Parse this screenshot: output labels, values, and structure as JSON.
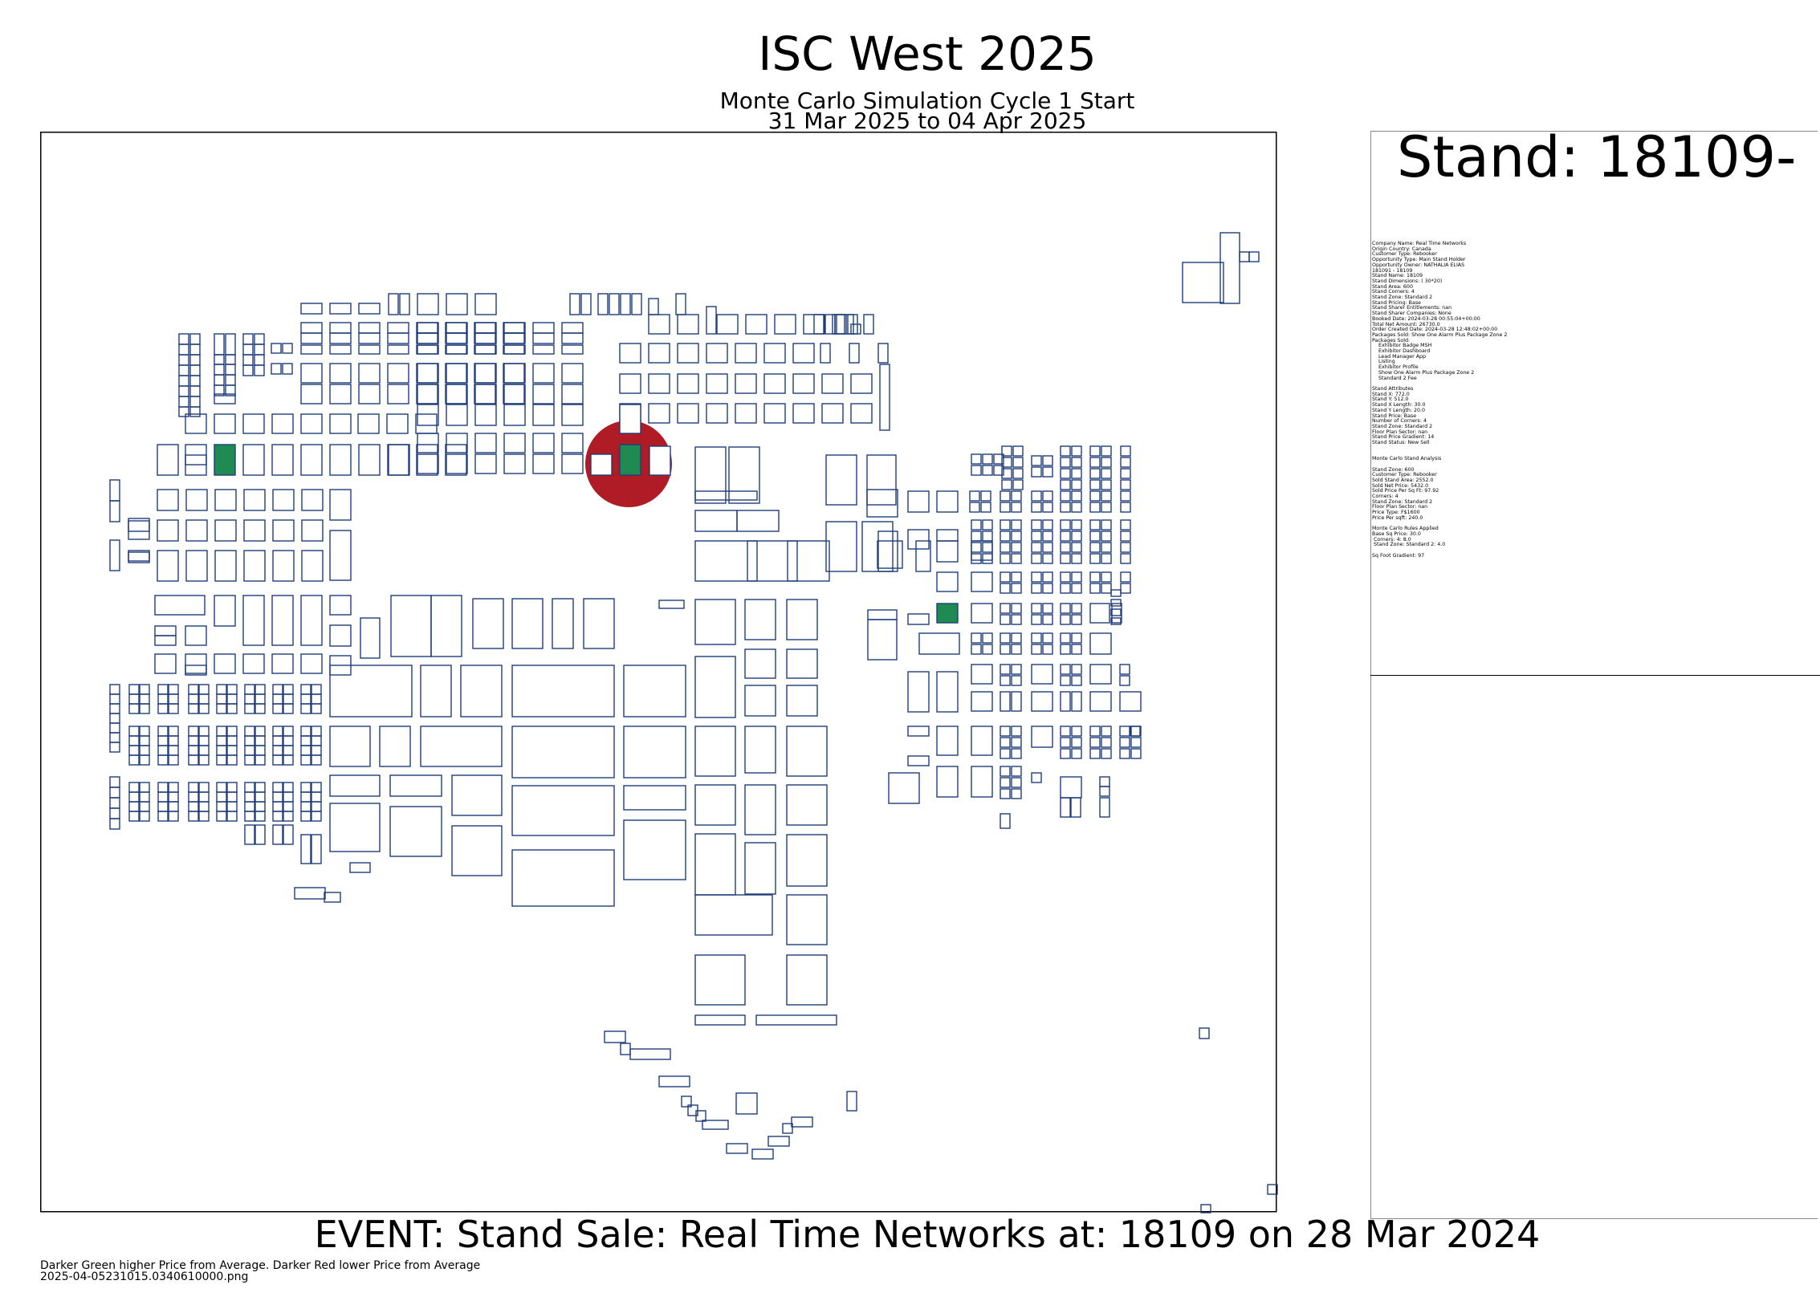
{
  "header": {
    "title": "ISC West 2025",
    "subtitle": "Monte Carlo Simulation Cycle 1 Start",
    "date_range": "31 Mar 2025 to 04 Apr 2025"
  },
  "panel": {
    "stand_heading": "Stand: 18109-",
    "details": [
      "Company Name: Real Time Networks",
      "Origin Country: Canada",
      "Customer Type: Rebooker",
      "Opportunity Type: Main Stand Holder",
      "Opportunity Owner: NATHALIA ELIAS",
      "181091 - 18109",
      "Stand Name: 18109",
      "Stand Dimensions: ( 30*20)",
      "Stand Area: 600",
      "Stand Corners: 4",
      "Stand Zone: Standard 2",
      "Stand Pricing: Base",
      "Stand Sharer Entitlements: nan",
      "Stand Sharer Companies: None",
      "Booked Date: 2024-03-28 00:55:04+00:00",
      "Total Net Amount: 26730.0",
      "Order Created Date: 2024-03-28 12:48:02+00:00",
      "Packages Sold: Show One Alarm Plus Package Zone 2",
      "Packages Sold:",
      "    Exhibitor Badge MSH",
      "    Exhibitor Dashboard",
      "    Lead Manager App",
      "    Listing",
      "    Exhibitor Profile",
      "    Show One Alarm Plus Package Zone 2",
      "    Standard 2 Fee",
      "",
      "Stand Attributes",
      "Stand X: 772.0",
      "Stand Y: 512.0",
      "Stand X Length: 30.0",
      "Stand Y Length: 20.0",
      "Stand Price: Base",
      "Number of Corners: 4",
      "Stand Zone: Standard 2",
      "Floor Plan Sector: nan",
      "Stand Price Gradient: 14",
      "Stand Status: New Sell",
      "",
      "",
      "Monte Carlo Stand Analysis",
      "",
      "Stand Zone: 600",
      "Customer Type: Rebooker",
      "Sold Stand Area: 2552.0",
      "Sold Net Price: 5432.0",
      "Sold Price Per Sq Ft: 97.92",
      "Corners: 4",
      "Stand Zone: Standard 2",
      "Floor Plan Sector: nan",
      "Price Type: F$1600",
      "Price Per sqft: 240.0",
      "",
      "Monte Carlo Rules Applied",
      "Base Sq Price: 30.0",
      " Corners: 4: 8.0",
      " Stand Zone: Standard 2: 4.0",
      "",
      "Sq Foot Gradient: 97"
    ]
  },
  "event": {
    "text": "EVENT: Stand Sale: Real Time Networks at: 18109 on 28 Mar 2024"
  },
  "footer": {
    "legend_note": "Darker Green higher Price from Average.  Darker Red lower Price from Average",
    "filename": "2025-04-05231015.0340610000.png"
  },
  "colors": {
    "stand_outline": "#1f3d7a",
    "sold_higher": "#1f8a52",
    "sold_lower": "#b01c25"
  },
  "map_highlights": {
    "sold_higher_stands": 3,
    "sold_lower_marker": "18109"
  }
}
